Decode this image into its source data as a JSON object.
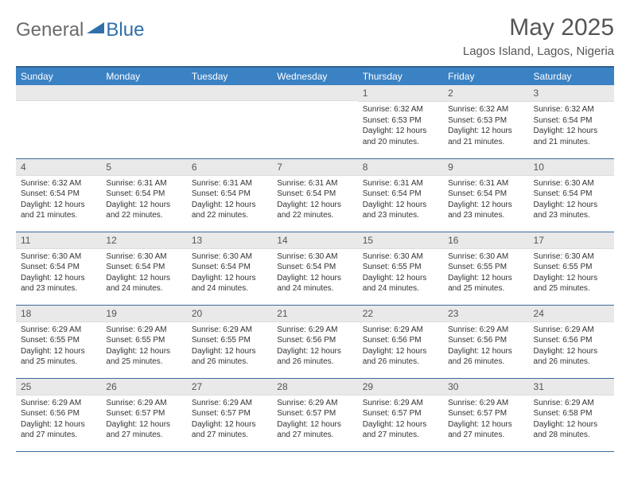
{
  "brand": {
    "text1": "General",
    "text2": "Blue",
    "icon_fill": "#2f6fab"
  },
  "title": "May 2025",
  "location": "Lagos Island, Lagos, Nigeria",
  "colors": {
    "header_bg": "#3b82c4",
    "header_border_top": "#2f5f8f",
    "row_border": "#3b6a9a",
    "daynum_bg": "#e9e9e9"
  },
  "day_headers": [
    "Sunday",
    "Monday",
    "Tuesday",
    "Wednesday",
    "Thursday",
    "Friday",
    "Saturday"
  ],
  "weeks": [
    [
      {
        "num": "",
        "sunrise": "",
        "sunset": "",
        "daylight": ""
      },
      {
        "num": "",
        "sunrise": "",
        "sunset": "",
        "daylight": ""
      },
      {
        "num": "",
        "sunrise": "",
        "sunset": "",
        "daylight": ""
      },
      {
        "num": "",
        "sunrise": "",
        "sunset": "",
        "daylight": ""
      },
      {
        "num": "1",
        "sunrise": "Sunrise: 6:32 AM",
        "sunset": "Sunset: 6:53 PM",
        "daylight": "Daylight: 12 hours and 20 minutes."
      },
      {
        "num": "2",
        "sunrise": "Sunrise: 6:32 AM",
        "sunset": "Sunset: 6:53 PM",
        "daylight": "Daylight: 12 hours and 21 minutes."
      },
      {
        "num": "3",
        "sunrise": "Sunrise: 6:32 AM",
        "sunset": "Sunset: 6:54 PM",
        "daylight": "Daylight: 12 hours and 21 minutes."
      }
    ],
    [
      {
        "num": "4",
        "sunrise": "Sunrise: 6:32 AM",
        "sunset": "Sunset: 6:54 PM",
        "daylight": "Daylight: 12 hours and 21 minutes."
      },
      {
        "num": "5",
        "sunrise": "Sunrise: 6:31 AM",
        "sunset": "Sunset: 6:54 PM",
        "daylight": "Daylight: 12 hours and 22 minutes."
      },
      {
        "num": "6",
        "sunrise": "Sunrise: 6:31 AM",
        "sunset": "Sunset: 6:54 PM",
        "daylight": "Daylight: 12 hours and 22 minutes."
      },
      {
        "num": "7",
        "sunrise": "Sunrise: 6:31 AM",
        "sunset": "Sunset: 6:54 PM",
        "daylight": "Daylight: 12 hours and 22 minutes."
      },
      {
        "num": "8",
        "sunrise": "Sunrise: 6:31 AM",
        "sunset": "Sunset: 6:54 PM",
        "daylight": "Daylight: 12 hours and 23 minutes."
      },
      {
        "num": "9",
        "sunrise": "Sunrise: 6:31 AM",
        "sunset": "Sunset: 6:54 PM",
        "daylight": "Daylight: 12 hours and 23 minutes."
      },
      {
        "num": "10",
        "sunrise": "Sunrise: 6:30 AM",
        "sunset": "Sunset: 6:54 PM",
        "daylight": "Daylight: 12 hours and 23 minutes."
      }
    ],
    [
      {
        "num": "11",
        "sunrise": "Sunrise: 6:30 AM",
        "sunset": "Sunset: 6:54 PM",
        "daylight": "Daylight: 12 hours and 23 minutes."
      },
      {
        "num": "12",
        "sunrise": "Sunrise: 6:30 AM",
        "sunset": "Sunset: 6:54 PM",
        "daylight": "Daylight: 12 hours and 24 minutes."
      },
      {
        "num": "13",
        "sunrise": "Sunrise: 6:30 AM",
        "sunset": "Sunset: 6:54 PM",
        "daylight": "Daylight: 12 hours and 24 minutes."
      },
      {
        "num": "14",
        "sunrise": "Sunrise: 6:30 AM",
        "sunset": "Sunset: 6:54 PM",
        "daylight": "Daylight: 12 hours and 24 minutes."
      },
      {
        "num": "15",
        "sunrise": "Sunrise: 6:30 AM",
        "sunset": "Sunset: 6:55 PM",
        "daylight": "Daylight: 12 hours and 24 minutes."
      },
      {
        "num": "16",
        "sunrise": "Sunrise: 6:30 AM",
        "sunset": "Sunset: 6:55 PM",
        "daylight": "Daylight: 12 hours and 25 minutes."
      },
      {
        "num": "17",
        "sunrise": "Sunrise: 6:30 AM",
        "sunset": "Sunset: 6:55 PM",
        "daylight": "Daylight: 12 hours and 25 minutes."
      }
    ],
    [
      {
        "num": "18",
        "sunrise": "Sunrise: 6:29 AM",
        "sunset": "Sunset: 6:55 PM",
        "daylight": "Daylight: 12 hours and 25 minutes."
      },
      {
        "num": "19",
        "sunrise": "Sunrise: 6:29 AM",
        "sunset": "Sunset: 6:55 PM",
        "daylight": "Daylight: 12 hours and 25 minutes."
      },
      {
        "num": "20",
        "sunrise": "Sunrise: 6:29 AM",
        "sunset": "Sunset: 6:55 PM",
        "daylight": "Daylight: 12 hours and 26 minutes."
      },
      {
        "num": "21",
        "sunrise": "Sunrise: 6:29 AM",
        "sunset": "Sunset: 6:56 PM",
        "daylight": "Daylight: 12 hours and 26 minutes."
      },
      {
        "num": "22",
        "sunrise": "Sunrise: 6:29 AM",
        "sunset": "Sunset: 6:56 PM",
        "daylight": "Daylight: 12 hours and 26 minutes."
      },
      {
        "num": "23",
        "sunrise": "Sunrise: 6:29 AM",
        "sunset": "Sunset: 6:56 PM",
        "daylight": "Daylight: 12 hours and 26 minutes."
      },
      {
        "num": "24",
        "sunrise": "Sunrise: 6:29 AM",
        "sunset": "Sunset: 6:56 PM",
        "daylight": "Daylight: 12 hours and 26 minutes."
      }
    ],
    [
      {
        "num": "25",
        "sunrise": "Sunrise: 6:29 AM",
        "sunset": "Sunset: 6:56 PM",
        "daylight": "Daylight: 12 hours and 27 minutes."
      },
      {
        "num": "26",
        "sunrise": "Sunrise: 6:29 AM",
        "sunset": "Sunset: 6:57 PM",
        "daylight": "Daylight: 12 hours and 27 minutes."
      },
      {
        "num": "27",
        "sunrise": "Sunrise: 6:29 AM",
        "sunset": "Sunset: 6:57 PM",
        "daylight": "Daylight: 12 hours and 27 minutes."
      },
      {
        "num": "28",
        "sunrise": "Sunrise: 6:29 AM",
        "sunset": "Sunset: 6:57 PM",
        "daylight": "Daylight: 12 hours and 27 minutes."
      },
      {
        "num": "29",
        "sunrise": "Sunrise: 6:29 AM",
        "sunset": "Sunset: 6:57 PM",
        "daylight": "Daylight: 12 hours and 27 minutes."
      },
      {
        "num": "30",
        "sunrise": "Sunrise: 6:29 AM",
        "sunset": "Sunset: 6:57 PM",
        "daylight": "Daylight: 12 hours and 27 minutes."
      },
      {
        "num": "31",
        "sunrise": "Sunrise: 6:29 AM",
        "sunset": "Sunset: 6:58 PM",
        "daylight": "Daylight: 12 hours and 28 minutes."
      }
    ]
  ]
}
